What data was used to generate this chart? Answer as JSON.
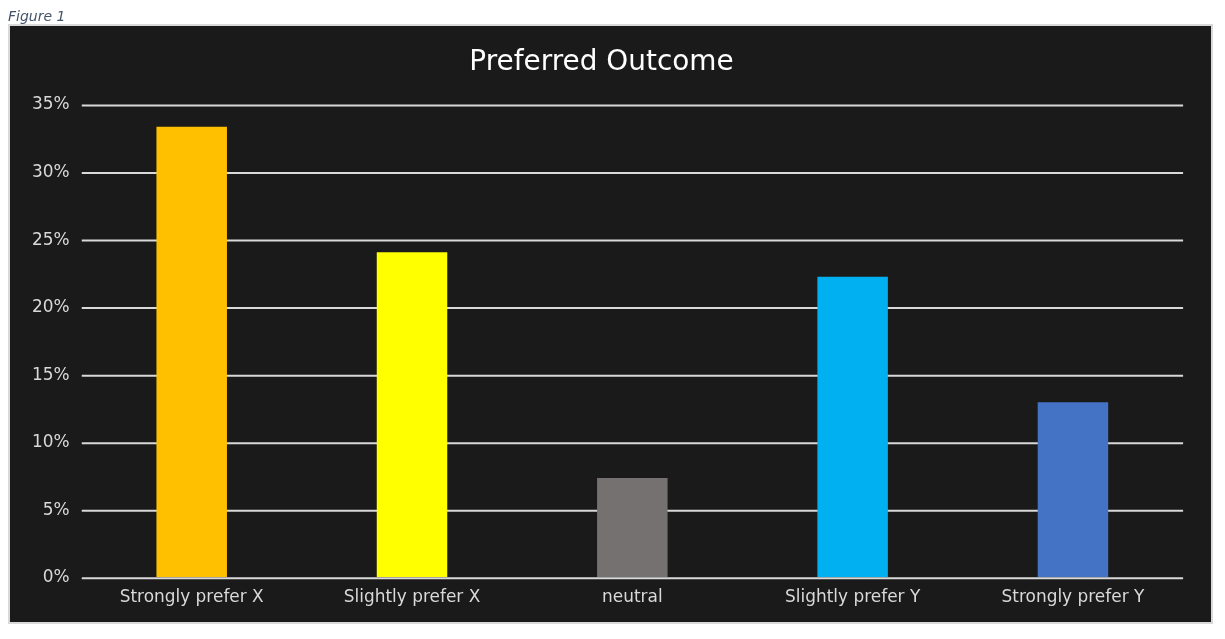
{
  "chart_data": {
    "type": "bar",
    "title": "Preferred Outcome",
    "annotations": [
      "Figure 1"
    ],
    "categories": [
      "Strongly prefer X",
      "Slightly prefer X",
      "neutral",
      "Slightly prefer Y",
      "Strongly prefer Y"
    ],
    "values": [
      33.4,
      24.1,
      7.4,
      22.3,
      13.0
    ],
    "colors": [
      "#ffc000",
      "#ffff00",
      "#767171",
      "#00b0f0",
      "#4472c4"
    ],
    "ylim": [
      0,
      35
    ],
    "yticks": [
      {
        "value": 0,
        "label": "0%"
      },
      {
        "value": 5,
        "label": "5%"
      },
      {
        "value": 10,
        "label": "10%"
      },
      {
        "value": 15,
        "label": "15%"
      },
      {
        "value": 20,
        "label": "20%"
      },
      {
        "value": 25,
        "label": "25%"
      },
      {
        "value": 30,
        "label": "30%"
      },
      {
        "value": 35,
        "label": "35%"
      }
    ],
    "grid": "y",
    "legend": false
  }
}
